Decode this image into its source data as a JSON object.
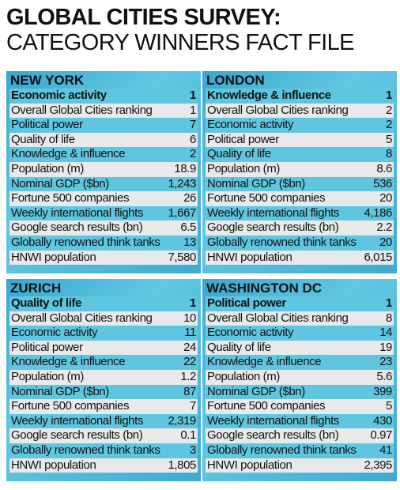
{
  "title": {
    "line1": "GLOBAL CITIES SURVEY:",
    "line2": "CATEGORY WINNERS FACT FILE"
  },
  "panels": [
    {
      "city": "NEW YORK",
      "rows": [
        [
          "Economic activity",
          "1"
        ],
        [
          "Overall Global Cities ranking",
          "1"
        ],
        [
          "Political power",
          "7"
        ],
        [
          "Quality of life",
          "6"
        ],
        [
          "Knowledge & influence",
          "2"
        ],
        [
          "Population (m)",
          "18.9"
        ],
        [
          "Nominal GDP ($bn)",
          "1,243"
        ],
        [
          "Fortune 500 companies",
          "26"
        ],
        [
          "Weekly international flights",
          "1,667"
        ],
        [
          "Google search results (bn)",
          "6.5"
        ],
        [
          "Globally renowned think tanks",
          "13"
        ],
        [
          "HNWI population",
          "7,580"
        ]
      ]
    },
    {
      "city": "LONDON",
      "rows": [
        [
          "Knowledge & influence",
          "1"
        ],
        [
          "Overall Global Cities ranking",
          "2"
        ],
        [
          "Economic activity",
          "2"
        ],
        [
          "Political power",
          "5"
        ],
        [
          "Quality of life",
          "8"
        ],
        [
          "Population (m)",
          "8.6"
        ],
        [
          "Nominal GDP ($bn)",
          "536"
        ],
        [
          "Fortune 500 companies",
          "20"
        ],
        [
          "Weekly international flights",
          "4,186"
        ],
        [
          "Google search results (bn)",
          "2.2"
        ],
        [
          "Globally renowned think tanks",
          "20"
        ],
        [
          "HNWI population",
          "6,015"
        ]
      ]
    },
    {
      "city": "ZURICH",
      "rows": [
        [
          "Quality of life",
          "1"
        ],
        [
          "Overall Global Cities ranking",
          "10"
        ],
        [
          "Economic activity",
          "11"
        ],
        [
          "Political power",
          "24"
        ],
        [
          "Knowledge & influence",
          "22"
        ],
        [
          "Population (m)",
          "1.2"
        ],
        [
          "Nominal GDP ($bn)",
          "87"
        ],
        [
          "Fortune 500 companies",
          "7"
        ],
        [
          "Weekly international flights",
          "2,319"
        ],
        [
          "Google search results (bn)",
          "0.1"
        ],
        [
          "Globally renowned think tanks",
          "3"
        ],
        [
          "HNWI population",
          "1,805"
        ]
      ]
    },
    {
      "city": "WASHINGTON DC",
      "rows": [
        [
          "Political power",
          "1"
        ],
        [
          "Overall Global Cities ranking",
          "8"
        ],
        [
          "Economic activity",
          "14"
        ],
        [
          "Quality of life",
          "19"
        ],
        [
          "Knowledge & influence",
          "23"
        ],
        [
          "Population (m)",
          "5.6"
        ],
        [
          "Nominal GDP ($bn)",
          "399"
        ],
        [
          "Fortune 500 companies",
          "5"
        ],
        [
          "Weekly international flights",
          "430"
        ],
        [
          "Google search results (bn)",
          "0.97"
        ],
        [
          "Globally renowned think tanks",
          "41"
        ],
        [
          "HNWI population",
          "2,395"
        ]
      ]
    }
  ]
}
